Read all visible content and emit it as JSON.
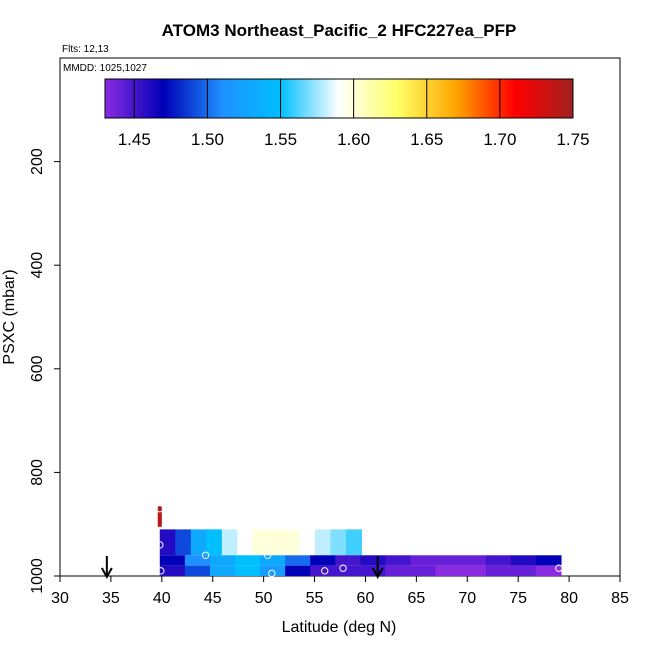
{
  "chart_data": {
    "type": "heatmap",
    "title": "ATOM3 Northeast_Pacific_2 HFC227ea_PFP",
    "flights_label": "Flts: 12,13",
    "mmdd_label": "MMDD: 1025,1027",
    "xlabel": "Latitude (deg N)",
    "ylabel": "PSXC (mbar)",
    "xlim": [
      30,
      85
    ],
    "ylim": [
      1000,
      0
    ],
    "x_ticks": [
      30,
      35,
      40,
      45,
      50,
      55,
      60,
      65,
      70,
      75,
      80,
      85
    ],
    "y_ticks": [
      200,
      400,
      600,
      800,
      1000
    ],
    "colorbar": {
      "min": 1.43,
      "max": 1.75,
      "ticks": [
        1.45,
        1.5,
        1.55,
        1.6,
        1.65,
        1.7,
        1.75
      ],
      "colors": [
        "#8a2be2",
        "#0000b8",
        "#1e90ff",
        "#00bfff",
        "#ffffff",
        "#ffff66",
        "#ffa500",
        "#ff0000",
        "#a02020"
      ]
    },
    "bands": [
      {
        "name": "upper column",
        "pressure_range": [
          865,
          905
        ],
        "lat_range": [
          39.6,
          40.0
        ],
        "value": 1.74
      },
      {
        "name": "upper band",
        "pressure_range": [
          910,
          960
        ],
        "lat_range": [
          39.8,
          59.6
        ],
        "values": [
          1.46,
          1.49,
          1.53,
          1.55,
          1.58,
          1.59,
          1.6,
          1.6,
          1.6,
          1.59,
          1.58,
          1.57,
          1.56
        ]
      },
      {
        "name": "middle band",
        "pressure_range": [
          960,
          980
        ],
        "lat_range": [
          39.8,
          79.2
        ],
        "values": [
          1.47,
          1.51,
          1.53,
          1.55,
          1.53,
          1.5,
          1.47,
          1.45,
          1.46,
          1.45,
          1.44,
          1.44,
          1.44,
          1.45,
          1.46,
          1.47
        ]
      },
      {
        "name": "lower band",
        "pressure_range": [
          980,
          1000
        ],
        "lat_range": [
          39.8,
          79.2
        ],
        "values": [
          1.46,
          1.49,
          1.53,
          1.55,
          1.52,
          1.47,
          1.45,
          1.45,
          1.45,
          1.44,
          1.44,
          1.43,
          1.43,
          1.44,
          1.44,
          1.43
        ]
      }
    ],
    "samples": [
      {
        "lat": 39.8,
        "pressure": 870
      },
      {
        "lat": 39.8,
        "pressure": 940
      },
      {
        "lat": 39.9,
        "pressure": 990
      },
      {
        "lat": 44.3,
        "pressure": 960
      },
      {
        "lat": 50.4,
        "pressure": 960
      },
      {
        "lat": 50.8,
        "pressure": 995
      },
      {
        "lat": 56.0,
        "pressure": 990
      },
      {
        "lat": 57.8,
        "pressure": 985
      },
      {
        "lat": 79.0,
        "pressure": 985
      }
    ],
    "arrows": [
      {
        "lat": 34.6
      },
      {
        "lat": 61.2
      }
    ]
  }
}
